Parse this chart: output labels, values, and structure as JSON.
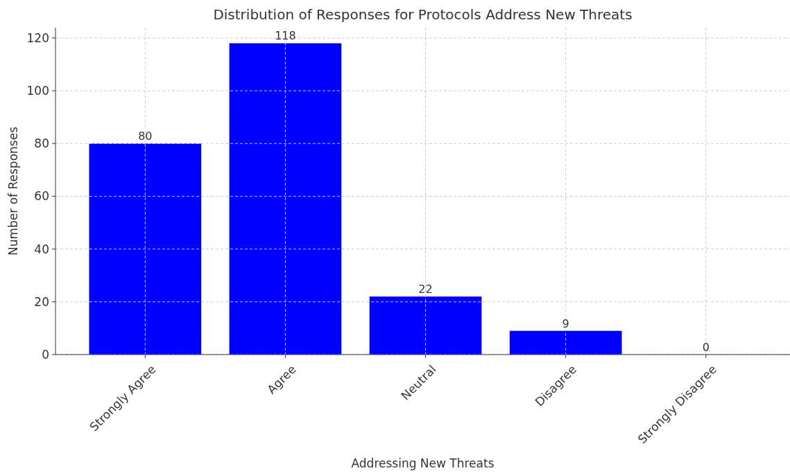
{
  "chart_data": {
    "type": "bar",
    "title": "Distribution of Responses for Protocols Address New Threats",
    "xlabel": "Addressing New Threats",
    "ylabel": "Number of Responses",
    "categories": [
      "Strongly Agree",
      "Agree",
      "Neutral",
      "Disagree",
      "Strongly Disagree"
    ],
    "values": [
      80,
      118,
      22,
      9,
      0
    ],
    "color": "#0000ff",
    "ylim": [
      0,
      123.9
    ],
    "yticks": [
      0,
      20,
      40,
      60,
      80,
      100,
      120
    ],
    "grid": true,
    "data_labels": true
  }
}
